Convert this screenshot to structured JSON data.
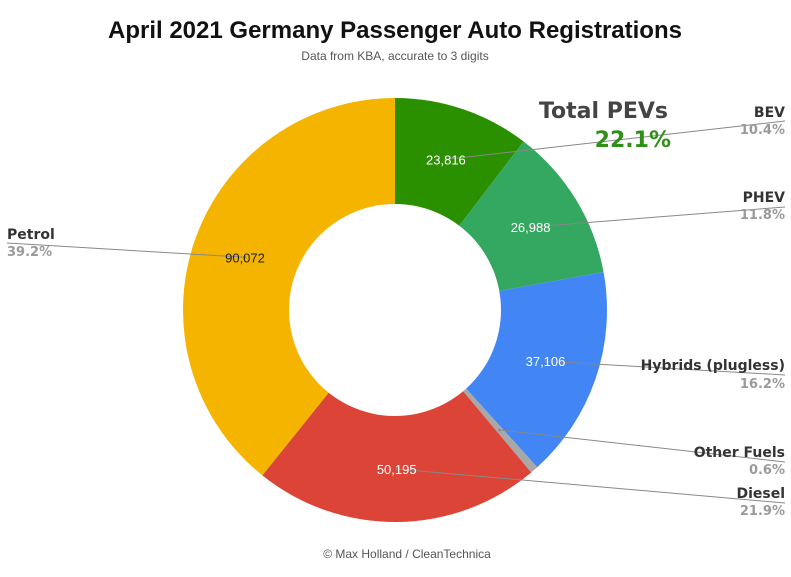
{
  "chart_data": {
    "type": "pie",
    "subtype": "donut",
    "title": "April 2021 Germany Passenger Auto Registrations",
    "subtitle": "Data from KBA, accurate to 3 digits",
    "footer": "© Max Holland / CleanTechnica",
    "annotation": {
      "label": "Total PEVs",
      "value": "22.1%"
    },
    "slices": [
      {
        "name": "BEV",
        "value": 23816,
        "value_label": "23,816",
        "percent": "10.4%",
        "color": "#2a9000"
      },
      {
        "name": "PHEV",
        "value": 26988,
        "value_label": "26,988",
        "percent": "11.8%",
        "color": "#34a760"
      },
      {
        "name": "Hybrids (plugless)",
        "value": 37106,
        "value_label": "37,106",
        "percent": "16.2%",
        "color": "#4285f4"
      },
      {
        "name": "Other Fuels",
        "value": 1374,
        "value_label": "",
        "percent": "0.6%",
        "color": "#a8a8a8"
      },
      {
        "name": "Diesel",
        "value": 50195,
        "value_label": "50,195",
        "percent": "21.9%",
        "color": "#db4437"
      },
      {
        "name": "Petrol",
        "value": 90072,
        "value_label": "90,072",
        "percent": "39.2%",
        "color": "#f4b400"
      }
    ]
  }
}
